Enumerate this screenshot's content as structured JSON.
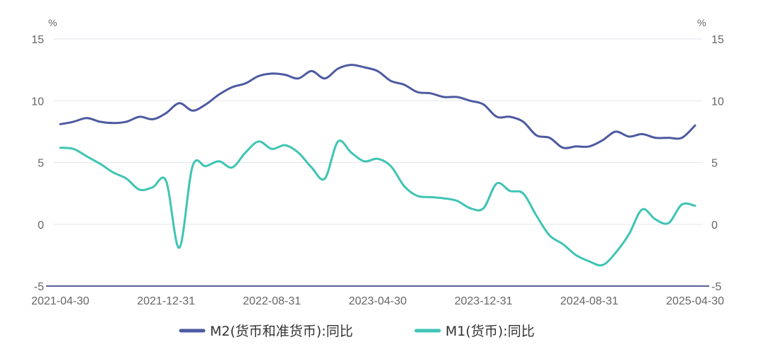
{
  "chart_data": {
    "type": "line",
    "x_ticks": [
      "2021-04-30",
      "2021-12-31",
      "2022-08-31",
      "2023-04-30",
      "2023-12-31",
      "2024-08-31",
      "2025-04-30"
    ],
    "y_left": {
      "unit": "%",
      "ticks": [
        15,
        10,
        5,
        0,
        -5
      ],
      "range": [
        -5,
        15
      ]
    },
    "y_right": {
      "unit": "%",
      "ticks": [
        15,
        10,
        5,
        0,
        -5
      ],
      "range": [
        -5,
        15
      ]
    },
    "grid": true,
    "legend_position": "bottom",
    "x": [
      "2021-04",
      "2021-05",
      "2021-06",
      "2021-07",
      "2021-08",
      "2021-09",
      "2021-10",
      "2021-11",
      "2021-12",
      "2022-01",
      "2022-02",
      "2022-03",
      "2022-04",
      "2022-05",
      "2022-06",
      "2022-07",
      "2022-08",
      "2022-09",
      "2022-10",
      "2022-11",
      "2022-12",
      "2023-01",
      "2023-02",
      "2023-03",
      "2023-04",
      "2023-05",
      "2023-06",
      "2023-07",
      "2023-08",
      "2023-09",
      "2023-10",
      "2023-11",
      "2023-12",
      "2024-01",
      "2024-02",
      "2024-03",
      "2024-04",
      "2024-05",
      "2024-06",
      "2024-07",
      "2024-08",
      "2024-09",
      "2024-10",
      "2024-11",
      "2024-12",
      "2025-01",
      "2025-02",
      "2025-03",
      "2025-04"
    ],
    "series": [
      {
        "name": "M2(货币和准货币):同比",
        "color": "#4d5aa0",
        "values": [
          8.1,
          8.3,
          8.6,
          8.3,
          8.2,
          8.3,
          8.7,
          8.5,
          9.0,
          9.8,
          9.2,
          9.7,
          10.5,
          11.1,
          11.4,
          12.0,
          12.2,
          12.1,
          11.8,
          12.4,
          11.8,
          12.6,
          12.9,
          12.7,
          12.4,
          11.6,
          11.3,
          10.7,
          10.6,
          10.3,
          10.3,
          10.0,
          9.7,
          8.7,
          8.7,
          8.3,
          7.2,
          7.0,
          6.2,
          6.3,
          6.3,
          6.8,
          7.5,
          7.1,
          7.3,
          7.0,
          7.0,
          7.0,
          8.0
        ]
      },
      {
        "name": "M1(货币):同比",
        "color": "#3fc4b4",
        "values": [
          6.2,
          6.1,
          5.5,
          4.9,
          4.2,
          3.7,
          2.8,
          3.0,
          3.5,
          -1.9,
          4.7,
          4.7,
          5.1,
          4.6,
          5.8,
          6.7,
          6.1,
          6.4,
          5.8,
          4.6,
          3.7,
          6.7,
          5.8,
          5.1,
          5.3,
          4.7,
          3.1,
          2.3,
          2.2,
          2.1,
          1.9,
          1.3,
          1.3,
          3.3,
          2.7,
          2.5,
          0.7,
          -0.9,
          -1.6,
          -2.5,
          -3.0,
          -3.3,
          -2.3,
          -0.8,
          1.2,
          0.4,
          0.1,
          1.6,
          1.5
        ]
      }
    ]
  }
}
